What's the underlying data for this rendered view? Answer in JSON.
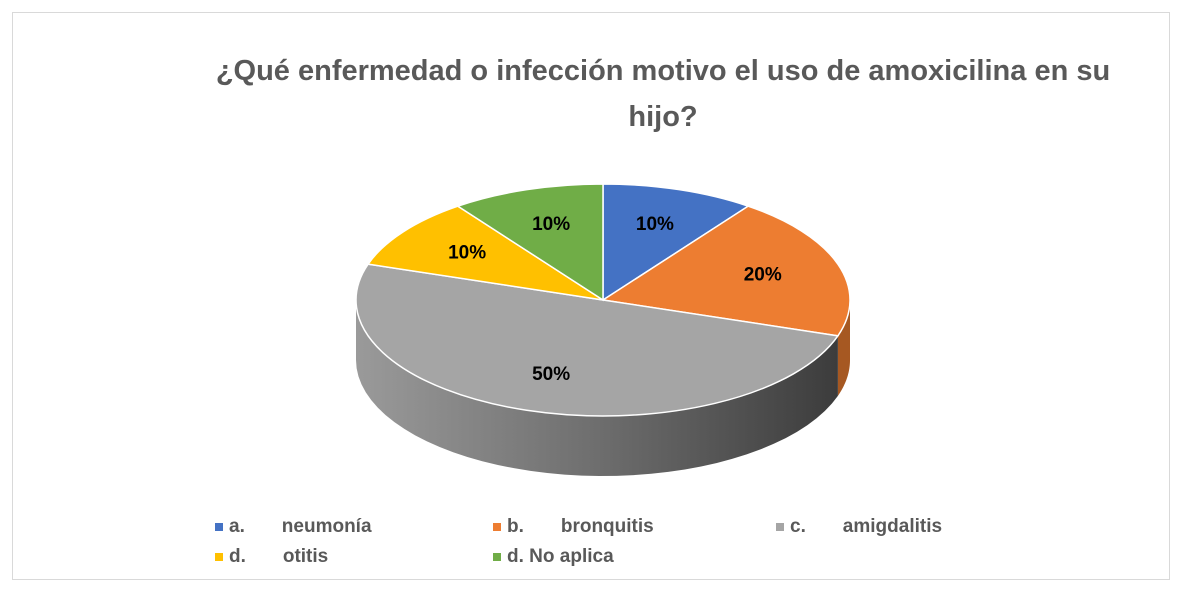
{
  "chart_data": {
    "type": "pie3d",
    "title": "¿Qué enfermedad o infección motivo el uso de amoxicilina en su hijo?",
    "categories": [
      "a.       neumonía",
      "b.       bronquitis",
      "c.       amigdalitis",
      "d.       otitis",
      "d. No aplica"
    ],
    "values": [
      10,
      20,
      50,
      10,
      10
    ],
    "value_labels": [
      "10%",
      "20%",
      "50%",
      "10%",
      "10%"
    ],
    "colors": [
      "#4472c4",
      "#ed7d31",
      "#a5a5a5",
      "#ffc000",
      "#70ad47"
    ],
    "legend": "bottom"
  }
}
